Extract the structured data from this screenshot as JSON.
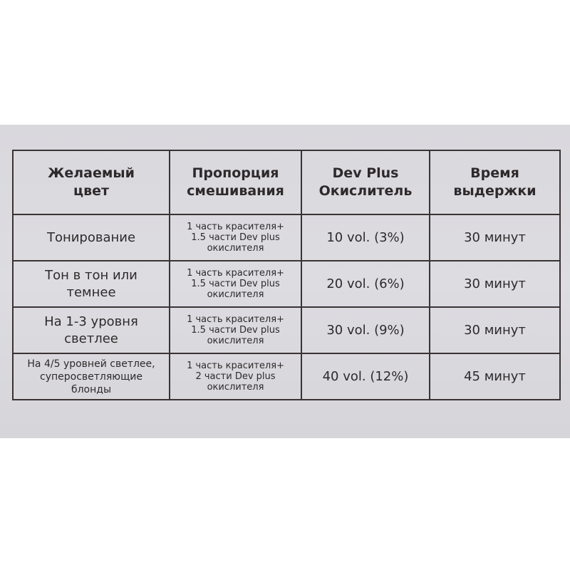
{
  "table": {
    "headers": [
      [
        "Желаемый",
        "цвет"
      ],
      [
        "Пропорция",
        "смешивания"
      ],
      [
        "Dev Plus",
        "Окислитель"
      ],
      [
        "Время",
        "выдержки"
      ]
    ],
    "rows": [
      {
        "color": [
          "Тонирование"
        ],
        "ratio": [
          "1 часть красителя+",
          "1.5 части Dev plus",
          "окислителя"
        ],
        "developer": "10 vol. (3%)",
        "time": "30 минут"
      },
      {
        "color": [
          "Тон в тон или",
          "темнее"
        ],
        "ratio": [
          "1 часть красителя+",
          "1.5 части Dev plus",
          "окислителя"
        ],
        "developer": "20 vol. (6%)",
        "time": "30 минут"
      },
      {
        "color": [
          "На 1-3 уровня",
          "светлее"
        ],
        "ratio": [
          "1 часть красителя+",
          "1.5 части Dev plus",
          "окислителя"
        ],
        "developer": "30 vol. (9%)",
        "time": "30 минут"
      },
      {
        "color": [
          "На 4/5 уровней светлее,",
          "суперосветляющие",
          "блонды"
        ],
        "ratio": [
          "1 часть красителя+",
          "2 части Dev plus",
          "окислителя"
        ],
        "developer": "40 vol. (12%)",
        "time": "45 минут"
      }
    ]
  }
}
